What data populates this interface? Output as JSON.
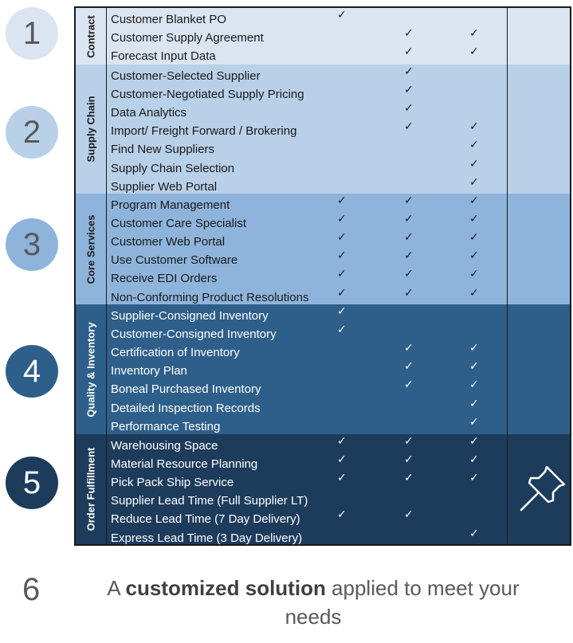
{
  "sections": [
    {
      "number": "1",
      "label": "Contract",
      "colors": {
        "section_bg": "#dbe5f1",
        "text": "#1a1a1a",
        "circle_bg": "#dbe5f1",
        "circle_text": "#595959"
      },
      "rows": [
        {
          "label": "Customer Blanket PO",
          "checks": [
            true,
            false,
            false
          ]
        },
        {
          "label": "Customer Supply Agreement",
          "checks": [
            false,
            true,
            true
          ]
        },
        {
          "label": "Forecast Input Data",
          "checks": [
            false,
            true,
            true
          ]
        }
      ]
    },
    {
      "number": "2",
      "label": "Supply Chain",
      "colors": {
        "section_bg": "#b8d0e8",
        "text": "#1a1a1a",
        "circle_bg": "#b8d0e8",
        "circle_text": "#595959"
      },
      "rows": [
        {
          "label": "Customer-Selected Supplier",
          "checks": [
            false,
            true,
            false
          ]
        },
        {
          "label": "Customer-Negotiated Supply Pricing",
          "checks": [
            false,
            true,
            false
          ]
        },
        {
          "label": "Data Analytics",
          "checks": [
            false,
            true,
            false
          ]
        },
        {
          "label": "Import/ Freight Forward / Brokering",
          "checks": [
            false,
            true,
            true
          ]
        },
        {
          "label": "Find New Suppliers",
          "checks": [
            false,
            false,
            true
          ]
        },
        {
          "label": "Supply Chain Selection",
          "checks": [
            false,
            false,
            true
          ]
        },
        {
          "label": "Supplier Web Portal",
          "checks": [
            false,
            false,
            true
          ]
        }
      ]
    },
    {
      "number": "3",
      "label": "Core Services",
      "colors": {
        "section_bg": "#8eb4dc",
        "text": "#1a1a1a",
        "circle_bg": "#8eb4dc",
        "circle_text": "#595959"
      },
      "rows": [
        {
          "label": "Program Management",
          "checks": [
            true,
            true,
            true
          ]
        },
        {
          "label": "Customer Care Specialist",
          "checks": [
            true,
            true,
            true
          ]
        },
        {
          "label": "Customer Web Portal",
          "checks": [
            true,
            true,
            true
          ]
        },
        {
          "label": "Use Customer Software",
          "checks": [
            true,
            true,
            true
          ]
        },
        {
          "label": "Receive EDI Orders",
          "checks": [
            true,
            true,
            true
          ]
        },
        {
          "label": "Non-Conforming Product Resolutions",
          "checks": [
            true,
            true,
            true
          ]
        }
      ]
    },
    {
      "number": "4",
      "label": "Quality & Inventory",
      "colors": {
        "section_bg": "#2e5f8a",
        "text": "#ffffff",
        "circle_bg": "#2e5f8a",
        "circle_text": "#ffffff"
      },
      "rows": [
        {
          "label": "Supplier-Consigned Inventory",
          "checks": [
            true,
            false,
            false
          ]
        },
        {
          "label": "Customer-Consigned Inventory",
          "checks": [
            true,
            false,
            false
          ]
        },
        {
          "label": "Certification of Inventory",
          "checks": [
            false,
            true,
            true
          ]
        },
        {
          "label": "Inventory Plan",
          "checks": [
            false,
            true,
            true
          ]
        },
        {
          "label": "Boneal Purchased Inventory",
          "checks": [
            false,
            true,
            true
          ]
        },
        {
          "label": "Detailed Inspection Records",
          "checks": [
            false,
            false,
            true
          ]
        },
        {
          "label": "Performance Testing",
          "checks": [
            false,
            false,
            true
          ]
        }
      ]
    },
    {
      "number": "5",
      "label": "Order Fulfillment",
      "colors": {
        "section_bg": "#1d3c5c",
        "text": "#ffffff",
        "circle_bg": "#1d3c5c",
        "circle_text": "#ffffff"
      },
      "rows": [
        {
          "label": "Warehousing Space",
          "checks": [
            true,
            true,
            true
          ]
        },
        {
          "label": "Material Resource Planning",
          "checks": [
            true,
            true,
            true
          ]
        },
        {
          "label": "Pick Pack Ship Service",
          "checks": [
            true,
            true,
            true
          ]
        },
        {
          "label": "Supplier Lead Time (Full Supplier LT)",
          "checks": [
            false,
            false,
            false
          ]
        },
        {
          "label": "Reduce Lead Time (7 Day Delivery)",
          "checks": [
            true,
            true,
            false
          ]
        },
        {
          "label": "Express Lead Time (3 Day Delivery)",
          "checks": [
            false,
            false,
            true
          ]
        }
      ]
    }
  ],
  "check_glyph": "✓",
  "pin_icon": "pushpin-icon",
  "footer": {
    "number": "6",
    "prefix": "A ",
    "bold": "customized solution",
    "suffix": " applied to meet your needs"
  }
}
